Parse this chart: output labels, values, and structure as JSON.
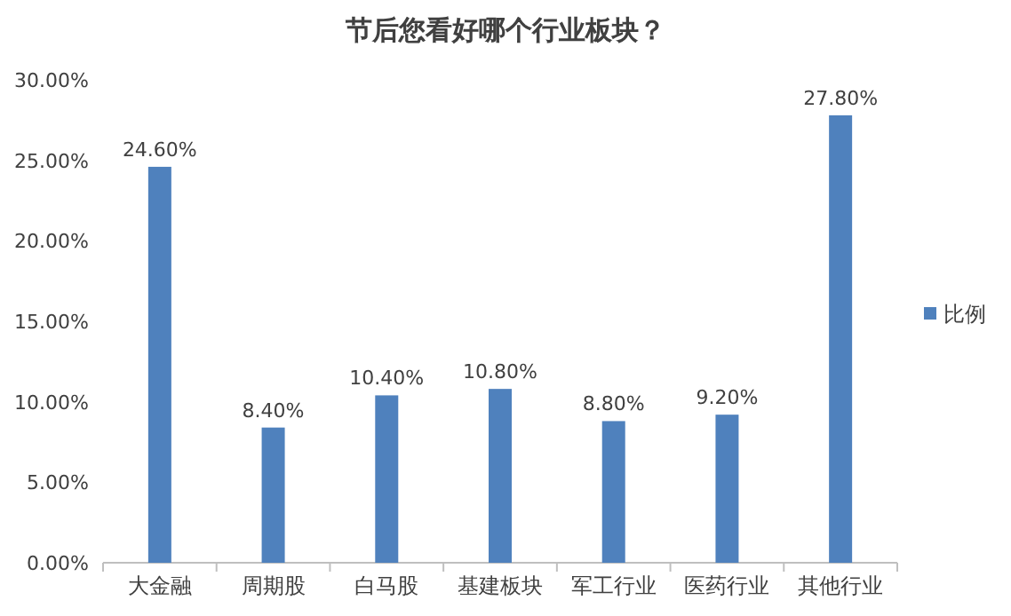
{
  "chart_data": {
    "type": "bar",
    "title": "节后您看好哪个行业板块？",
    "categories": [
      "大金融",
      "周期股",
      "白马股",
      "基建板块",
      "军工行业",
      "医药行业",
      "其他行业"
    ],
    "series": [
      {
        "name": "比例",
        "color": "#4f81bd",
        "values": [
          24.6,
          8.4,
          10.4,
          10.8,
          8.8,
          9.2,
          27.8
        ],
        "value_labels": [
          "24.60%",
          "8.40%",
          "10.40%",
          "10.80%",
          "8.80%",
          "9.20%",
          "27.80%"
        ]
      }
    ],
    "ylim": [
      0,
      30
    ],
    "yticks": [
      {
        "value": 0,
        "label": "0.00%"
      },
      {
        "value": 5,
        "label": "5.00%"
      },
      {
        "value": 10,
        "label": "10.00%"
      },
      {
        "value": 15,
        "label": "15.00%"
      },
      {
        "value": 20,
        "label": "20.00%"
      },
      {
        "value": 25,
        "label": "25.00%"
      },
      {
        "value": 30,
        "label": "30.00%"
      }
    ],
    "grid": false,
    "legend": "right"
  }
}
